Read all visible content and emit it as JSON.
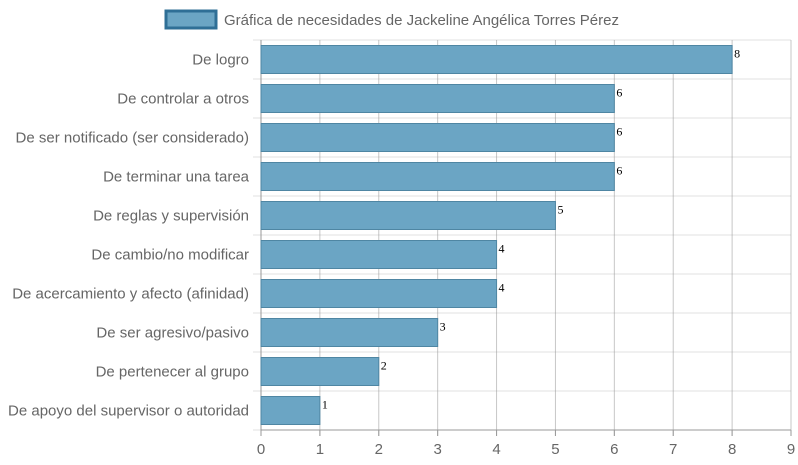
{
  "chart_data": {
    "type": "bar",
    "orientation": "horizontal",
    "legend": {
      "label": "Gráfica de necesidades de Jackeline Angélica Torres Pérez",
      "position": "top"
    },
    "categories": [
      "De logro",
      "De controlar a otros",
      "De ser notificado (ser considerado)",
      "De terminar una tarea",
      "De reglas y supervisión",
      "De cambio/no modificar",
      "De acercamiento y afecto (afinidad)",
      "De ser agresivo/pasivo",
      "De pertenecer al grupo",
      "De apoyo del supervisor o autoridad"
    ],
    "values": [
      8,
      6,
      6,
      6,
      5,
      4,
      4,
      3,
      2,
      1
    ],
    "xlim": [
      0,
      9
    ],
    "xticks": [
      "0",
      "1",
      "2",
      "3",
      "4",
      "5",
      "6",
      "7",
      "8",
      "9"
    ],
    "grid": true,
    "colors": {
      "bar_fill": "#6ba5c4",
      "bar_stroke": "#4f86a3",
      "grid": "#e0e0e0",
      "axis": "#999999"
    }
  }
}
